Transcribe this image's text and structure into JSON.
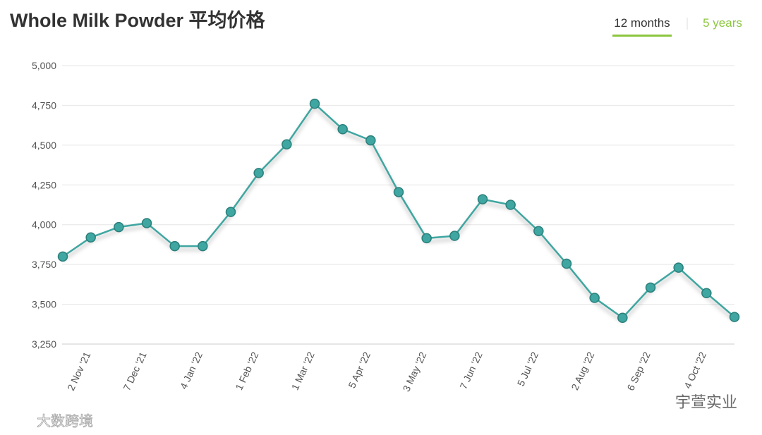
{
  "chart_data": {
    "type": "line",
    "title": "Whole Milk Powder 平均价格",
    "tabs": [
      "12 months",
      "5 years"
    ],
    "categories": [
      null,
      "2 Nov '21",
      null,
      "7 Dec '21",
      null,
      "4 Jan '22",
      null,
      "1 Feb '22",
      null,
      "1 Mar '22",
      null,
      "5 Apr '22",
      null,
      "3 May '22",
      null,
      "7 Jun '22",
      null,
      "5 Jul '22",
      null,
      "2 Aug '22",
      null,
      "6 Sep '22",
      null,
      "4 Oct '22",
      null
    ],
    "values": [
      3800,
      3920,
      3985,
      4010,
      3865,
      3865,
      4080,
      4325,
      4505,
      4760,
      4600,
      4530,
      4205,
      3915,
      3930,
      4160,
      4125,
      3960,
      3755,
      3540,
      3415,
      3605,
      3730,
      3570,
      3420
    ],
    "color": "#3fa6a1",
    "ylim": [
      3250,
      5000
    ],
    "yticks": [
      {
        "value": 3250,
        "label": "3,250"
      },
      {
        "value": 3500,
        "label": "3,500"
      },
      {
        "value": 3750,
        "label": "3,750"
      },
      {
        "value": 4000,
        "label": "4,000"
      },
      {
        "value": 4250,
        "label": "4,250"
      },
      {
        "value": 4500,
        "label": "4,500"
      },
      {
        "value": 4750,
        "label": "4,750"
      },
      {
        "value": 5000,
        "label": "5,000"
      }
    ],
    "grid": true,
    "watermarks": [
      "宇萱实业",
      "大数跨境"
    ]
  }
}
